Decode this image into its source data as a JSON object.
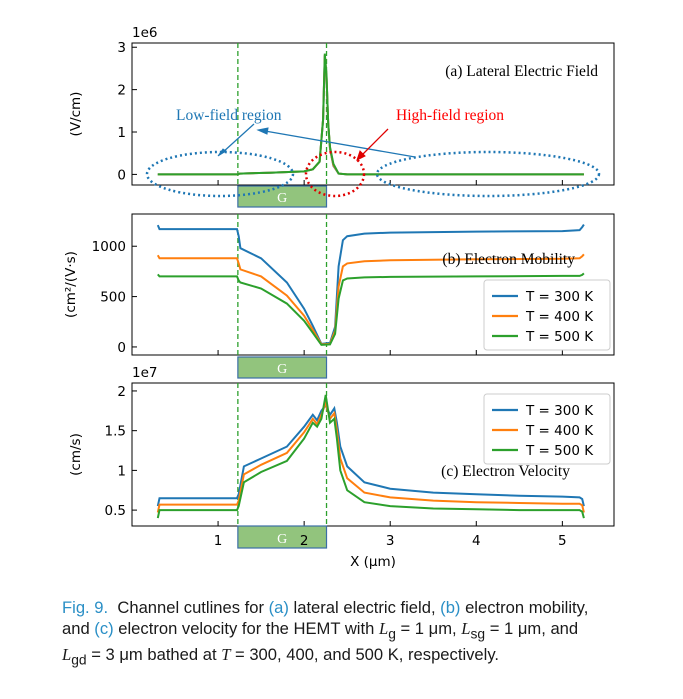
{
  "chart_data": [
    {
      "type": "line",
      "panel": "a",
      "title": "(a) Lateral Electric Field",
      "ylabel": "(V/cm)",
      "y_scale_label": "1e6",
      "ylim": [
        -0.25,
        3.1
      ],
      "yticks": [
        0,
        1,
        2,
        3
      ],
      "xlim": [
        0.0,
        5.6
      ],
      "gate_label": "G",
      "annotations": [
        {
          "text": "Low-field region",
          "color": "#1f77b4"
        },
        {
          "text": "High-field region",
          "color": "#ff0000"
        }
      ],
      "series": [
        {
          "name": "T = 300 K",
          "color": "#1f77b4",
          "x": [
            0.3,
            1.23,
            1.25,
            1.6,
            2.0,
            2.1,
            2.18,
            2.22,
            2.24,
            2.26,
            2.28,
            2.3,
            2.34,
            2.4,
            2.5,
            5.25
          ],
          "y": [
            0.0,
            0.0,
            0.02,
            0.04,
            0.07,
            0.12,
            0.3,
            1.3,
            2.8,
            2.3,
            1.2,
            0.6,
            0.2,
            0.02,
            0.0,
            0.0
          ]
        },
        {
          "name": "T = 400 K",
          "color": "#ff7f0e",
          "x": [
            0.3,
            1.23,
            1.25,
            1.6,
            2.0,
            2.1,
            2.18,
            2.22,
            2.24,
            2.26,
            2.28,
            2.3,
            2.34,
            2.4,
            2.5,
            5.25
          ],
          "y": [
            0.0,
            0.0,
            0.02,
            0.04,
            0.07,
            0.12,
            0.3,
            1.3,
            2.82,
            2.32,
            1.2,
            0.62,
            0.22,
            0.02,
            0.0,
            0.0
          ]
        },
        {
          "name": "T = 500 K",
          "color": "#2ca02c",
          "x": [
            0.3,
            1.23,
            1.25,
            1.6,
            2.0,
            2.1,
            2.18,
            2.22,
            2.24,
            2.26,
            2.28,
            2.3,
            2.34,
            2.4,
            2.5,
            5.25
          ],
          "y": [
            0.0,
            0.0,
            0.02,
            0.04,
            0.07,
            0.12,
            0.3,
            1.3,
            2.85,
            2.35,
            1.2,
            0.65,
            0.25,
            0.02,
            0.0,
            0.0
          ]
        }
      ]
    },
    {
      "type": "line",
      "panel": "b",
      "title": "(b) Electron Mobility",
      "ylabel": "(cm²/(V·s)",
      "ylim": [
        -80,
        1320
      ],
      "yticks": [
        0,
        500,
        1000
      ],
      "xlim": [
        0.0,
        5.6
      ],
      "gate_label": "G",
      "legend": [
        "T = 300 K",
        "T = 400 K",
        "T = 500 K"
      ],
      "series": [
        {
          "name": "T = 300 K",
          "color": "#1f77b4",
          "x": [
            0.3,
            0.32,
            1.22,
            1.24,
            1.26,
            1.5,
            1.8,
            2.0,
            2.1,
            2.2,
            2.3,
            2.36,
            2.4,
            2.45,
            2.5,
            2.7,
            3.0,
            4.0,
            5.0,
            5.2,
            5.23,
            5.25
          ],
          "y": [
            1210,
            1170,
            1170,
            1100,
            980,
            880,
            640,
            380,
            210,
            30,
            40,
            200,
            800,
            1060,
            1100,
            1125,
            1135,
            1145,
            1150,
            1160,
            1190,
            1215
          ]
        },
        {
          "name": "T = 400 K",
          "color": "#ff7f0e",
          "x": [
            0.3,
            0.32,
            1.22,
            1.24,
            1.26,
            1.5,
            1.8,
            2.0,
            2.1,
            2.2,
            2.3,
            2.36,
            2.4,
            2.45,
            2.5,
            2.7,
            3.0,
            4.0,
            5.0,
            5.2,
            5.23,
            5.25
          ],
          "y": [
            910,
            880,
            880,
            830,
            770,
            700,
            510,
            310,
            170,
            25,
            30,
            160,
            600,
            800,
            830,
            850,
            860,
            870,
            875,
            880,
            900,
            920
          ]
        },
        {
          "name": "T = 500 K",
          "color": "#2ca02c",
          "x": [
            0.3,
            0.32,
            1.22,
            1.24,
            1.26,
            1.5,
            1.8,
            2.0,
            2.1,
            2.2,
            2.3,
            2.36,
            2.4,
            2.45,
            2.5,
            2.7,
            3.0,
            4.0,
            5.0,
            5.2,
            5.23,
            5.25
          ],
          "y": [
            720,
            700,
            700,
            660,
            640,
            580,
            430,
            260,
            140,
            20,
            25,
            130,
            480,
            660,
            680,
            690,
            695,
            700,
            705,
            705,
            715,
            730
          ]
        }
      ]
    },
    {
      "type": "line",
      "panel": "c",
      "title": "(c) Electron Velocity",
      "ylabel": "(cm/s)",
      "y_scale_label": "1e7",
      "xlabel": "X (μm)",
      "ylim": [
        0.3,
        2.1
      ],
      "yticks": [
        0.5,
        1.0,
        1.5,
        2.0
      ],
      "xlim": [
        0.0,
        5.6
      ],
      "xticks": [
        1,
        2,
        3,
        4,
        5
      ],
      "gate_label": "G",
      "legend": [
        "T = 300 K",
        "T = 400 K",
        "T = 500 K"
      ],
      "series": [
        {
          "name": "T = 300 K",
          "color": "#1f77b4",
          "x": [
            0.3,
            0.32,
            1.22,
            1.24,
            1.3,
            1.5,
            1.8,
            2.0,
            2.1,
            2.15,
            2.2,
            2.25,
            2.3,
            2.35,
            2.38,
            2.42,
            2.5,
            2.7,
            3.0,
            3.5,
            4.0,
            4.5,
            5.0,
            5.2,
            5.23,
            5.25
          ],
          "y": [
            0.55,
            0.65,
            0.65,
            0.7,
            1.05,
            1.15,
            1.3,
            1.55,
            1.7,
            1.63,
            1.75,
            1.82,
            1.7,
            1.78,
            1.6,
            1.3,
            1.05,
            0.85,
            0.77,
            0.72,
            0.7,
            0.68,
            0.67,
            0.66,
            0.64,
            0.55
          ]
        },
        {
          "name": "T = 400 K",
          "color": "#ff7f0e",
          "x": [
            0.3,
            0.32,
            1.22,
            1.24,
            1.3,
            1.5,
            1.8,
            2.0,
            2.1,
            2.15,
            2.2,
            2.25,
            2.3,
            2.35,
            2.38,
            2.42,
            2.5,
            2.7,
            3.0,
            3.5,
            4.0,
            4.5,
            5.0,
            5.2,
            5.23,
            5.25
          ],
          "y": [
            0.47,
            0.57,
            0.57,
            0.62,
            0.95,
            1.07,
            1.22,
            1.48,
            1.65,
            1.58,
            1.7,
            1.85,
            1.65,
            1.72,
            1.5,
            1.15,
            0.9,
            0.72,
            0.66,
            0.62,
            0.6,
            0.59,
            0.58,
            0.58,
            0.56,
            0.47
          ]
        },
        {
          "name": "T = 500 K",
          "color": "#2ca02c",
          "x": [
            0.3,
            0.32,
            1.22,
            1.24,
            1.3,
            1.5,
            1.8,
            2.0,
            2.1,
            2.15,
            2.2,
            2.25,
            2.3,
            2.35,
            2.38,
            2.42,
            2.5,
            2.7,
            3.0,
            3.5,
            4.0,
            4.5,
            5.0,
            5.2,
            5.23,
            5.25
          ],
          "y": [
            0.4,
            0.5,
            0.5,
            0.55,
            0.85,
            0.98,
            1.12,
            1.4,
            1.6,
            1.55,
            1.65,
            1.95,
            1.6,
            1.65,
            1.4,
            1.0,
            0.75,
            0.6,
            0.55,
            0.52,
            0.51,
            0.5,
            0.5,
            0.5,
            0.48,
            0.4
          ]
        }
      ]
    }
  ],
  "caption": {
    "label": "Fig. 9.",
    "line1_pre": "Channel cutlines for ",
    "ref_a": "(a)",
    "line1_mid1": " lateral electric field, ",
    "ref_b": "(b)",
    "line1_mid2": " electron mobility,",
    "line2_pre": "and ",
    "ref_c": "(c)",
    "line2_rest": " electron velocity for the HEMT with ",
    "lg": "L",
    "lg_sub": "g",
    "lg_val": " = 1 μm, ",
    "lsg": "L",
    "lsg_sub": "sg",
    "lsg_val": " = 1 μm, and",
    "lgd": "L",
    "lgd_sub": "gd",
    "line3_rest": " = 3 μm bathed at ",
    "t_sym": "T",
    "line3_end": " = 300, 400, and 500 K, respectively."
  }
}
